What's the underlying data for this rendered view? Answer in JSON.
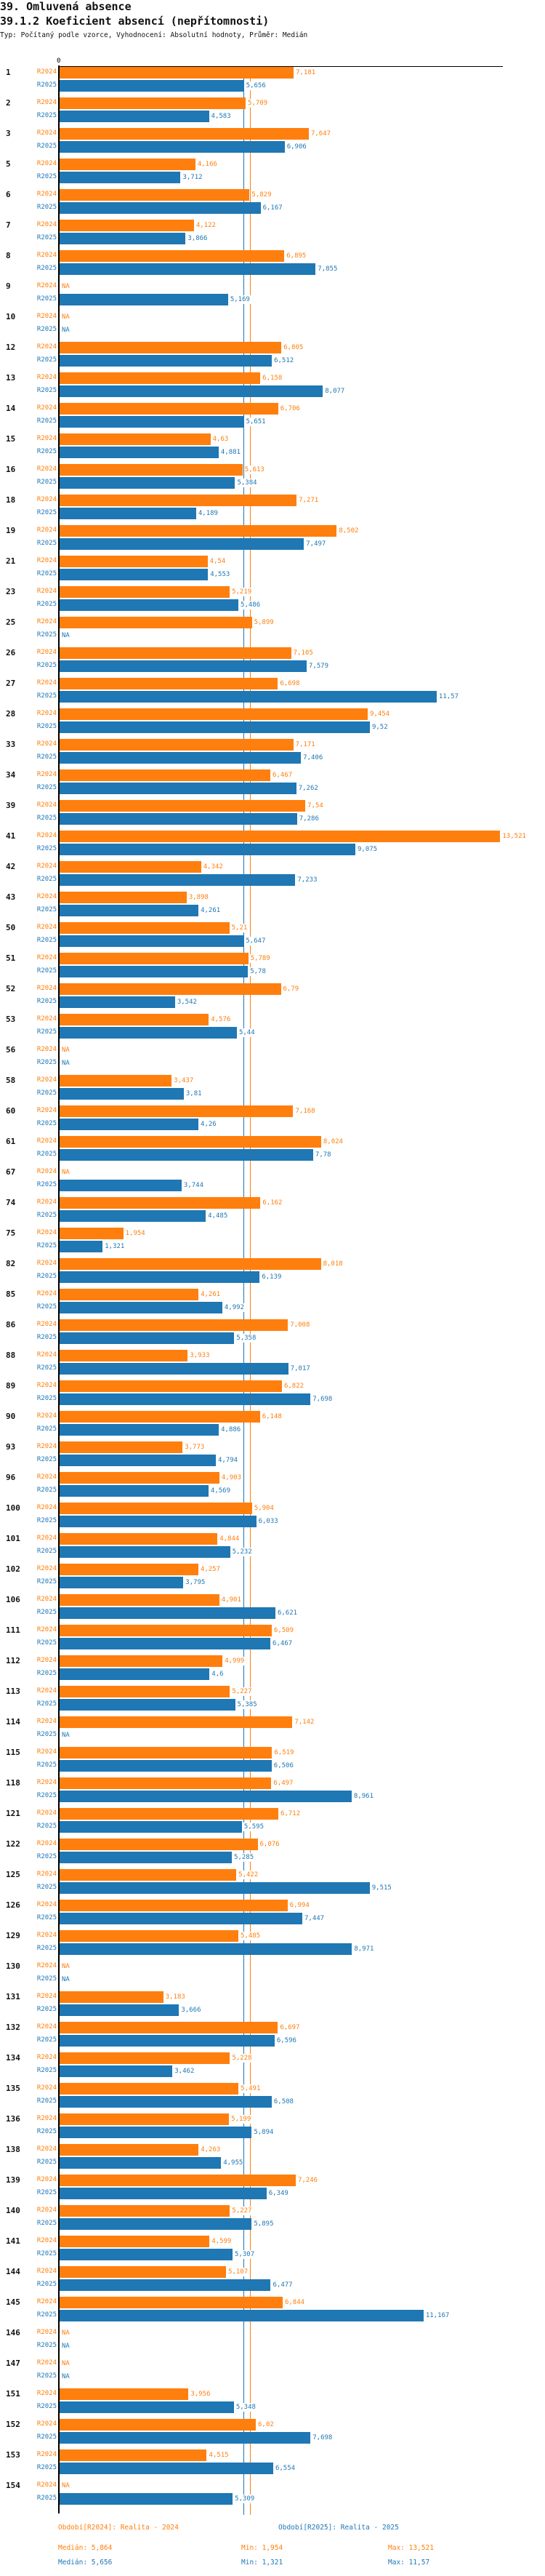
{
  "header": {
    "section": "39. Omluvená absence",
    "title": "39.1.2 Koeficient absencí (nepřítomnosti)",
    "subtitle": "Typ: Počítaný podle vzorce, Vyhodnocení: Absolutní hodnoty, Průměr: Medián"
  },
  "colors": {
    "R2024": "#ff7f0e",
    "R2025": "#1f77b4"
  },
  "chart_data": {
    "type": "bar",
    "orientation": "horizontal",
    "axis_zero_label": "0",
    "xlim": [
      0,
      13.521
    ],
    "series_names": [
      "R2024",
      "R2025"
    ],
    "medians": {
      "R2024": 5.864,
      "R2025": 5.656
    },
    "groups": [
      {
        "id": "1",
        "R2024": "7,181",
        "R2025": "5,656"
      },
      {
        "id": "2",
        "R2024": "5,709",
        "R2025": "4,583"
      },
      {
        "id": "3",
        "R2024": "7,647",
        "R2025": "6,906"
      },
      {
        "id": "5",
        "R2024": "4,166",
        "R2025": "3,712"
      },
      {
        "id": "6",
        "R2024": "5,829",
        "R2025": "6,167"
      },
      {
        "id": "7",
        "R2024": "4,122",
        "R2025": "3,866"
      },
      {
        "id": "8",
        "R2024": "6,895",
        "R2025": "7,855"
      },
      {
        "id": "9",
        "R2024": "NA",
        "R2025": "5,169"
      },
      {
        "id": "10",
        "R2024": "NA",
        "R2025": "NA"
      },
      {
        "id": "12",
        "R2024": "6,805",
        "R2025": "6,512"
      },
      {
        "id": "13",
        "R2024": "6,158",
        "R2025": "8,077"
      },
      {
        "id": "14",
        "R2024": "6,706",
        "R2025": "5,651"
      },
      {
        "id": "15",
        "R2024": "4,63",
        "R2025": "4,881"
      },
      {
        "id": "16",
        "R2024": "5,613",
        "R2025": "5,384"
      },
      {
        "id": "18",
        "R2024": "7,271",
        "R2025": "4,189"
      },
      {
        "id": "19",
        "R2024": "8,502",
        "R2025": "7,497"
      },
      {
        "id": "21",
        "R2024": "4,54",
        "R2025": "4,553"
      },
      {
        "id": "23",
        "R2024": "5,219",
        "R2025": "5,486"
      },
      {
        "id": "25",
        "R2024": "5,899",
        "R2025": "NA"
      },
      {
        "id": "26",
        "R2024": "7,105",
        "R2025": "7,579"
      },
      {
        "id": "27",
        "R2024": "6,698",
        "R2025": "11,57"
      },
      {
        "id": "28",
        "R2024": "9,454",
        "R2025": "9,52"
      },
      {
        "id": "33",
        "R2024": "7,171",
        "R2025": "7,406"
      },
      {
        "id": "34",
        "R2024": "6,467",
        "R2025": "7,262"
      },
      {
        "id": "39",
        "R2024": "7,54",
        "R2025": "7,286"
      },
      {
        "id": "41",
        "R2024": "13,521",
        "R2025": "9,075"
      },
      {
        "id": "42",
        "R2024": "4,342",
        "R2025": "7,233"
      },
      {
        "id": "43",
        "R2024": "3,898",
        "R2025": "4,261"
      },
      {
        "id": "50",
        "R2024": "5,21",
        "R2025": "5,647"
      },
      {
        "id": "51",
        "R2024": "5,789",
        "R2025": "5,78"
      },
      {
        "id": "52",
        "R2024": "6,79",
        "R2025": "3,542"
      },
      {
        "id": "53",
        "R2024": "4,576",
        "R2025": "5,44"
      },
      {
        "id": "56",
        "R2024": "NA",
        "R2025": "NA"
      },
      {
        "id": "58",
        "R2024": "3,437",
        "R2025": "3,81"
      },
      {
        "id": "60",
        "R2024": "7,168",
        "R2025": "4,26"
      },
      {
        "id": "61",
        "R2024": "8,024",
        "R2025": "7,78"
      },
      {
        "id": "67",
        "R2024": "NA",
        "R2025": "3,744"
      },
      {
        "id": "74",
        "R2024": "6,162",
        "R2025": "4,485"
      },
      {
        "id": "75",
        "R2024": "1,954",
        "R2025": "1,321"
      },
      {
        "id": "82",
        "R2024": "8,018",
        "R2025": "6,139"
      },
      {
        "id": "85",
        "R2024": "4,261",
        "R2025": "4,992"
      },
      {
        "id": "86",
        "R2024": "7,008",
        "R2025": "5,358"
      },
      {
        "id": "88",
        "R2024": "3,933",
        "R2025": "7,017"
      },
      {
        "id": "89",
        "R2024": "6,822",
        "R2025": "7,698"
      },
      {
        "id": "90",
        "R2024": "6,148",
        "R2025": "4,886"
      },
      {
        "id": "93",
        "R2024": "3,773",
        "R2025": "4,794"
      },
      {
        "id": "96",
        "R2024": "4,903",
        "R2025": "4,569"
      },
      {
        "id": "100",
        "R2024": "5,904",
        "R2025": "6,033"
      },
      {
        "id": "101",
        "R2024": "4,844",
        "R2025": "5,232"
      },
      {
        "id": "102",
        "R2024": "4,257",
        "R2025": "3,795"
      },
      {
        "id": "106",
        "R2024": "4,901",
        "R2025": "6,621"
      },
      {
        "id": "111",
        "R2024": "6,509",
        "R2025": "6,467"
      },
      {
        "id": "112",
        "R2024": "4,999",
        "R2025": "4,6"
      },
      {
        "id": "113",
        "R2024": "5,227",
        "R2025": "5,385"
      },
      {
        "id": "114",
        "R2024": "7,142",
        "R2025": "NA"
      },
      {
        "id": "115",
        "R2024": "6,519",
        "R2025": "6,506"
      },
      {
        "id": "118",
        "R2024": "6,497",
        "R2025": "8,961"
      },
      {
        "id": "121",
        "R2024": "6,712",
        "R2025": "5,595"
      },
      {
        "id": "122",
        "R2024": "6,076",
        "R2025": "5,285"
      },
      {
        "id": "125",
        "R2024": "5,422",
        "R2025": "9,515"
      },
      {
        "id": "126",
        "R2024": "6,994",
        "R2025": "7,447"
      },
      {
        "id": "129",
        "R2024": "5,485",
        "R2025": "8,971"
      },
      {
        "id": "130",
        "R2024": "NA",
        "R2025": "NA"
      },
      {
        "id": "131",
        "R2024": "3,183",
        "R2025": "3,666"
      },
      {
        "id": "132",
        "R2024": "6,697",
        "R2025": "6,596"
      },
      {
        "id": "134",
        "R2024": "5,228",
        "R2025": "3,462"
      },
      {
        "id": "135",
        "R2024": "5,491",
        "R2025": "6,508"
      },
      {
        "id": "136",
        "R2024": "5,199",
        "R2025": "5,894"
      },
      {
        "id": "138",
        "R2024": "4,263",
        "R2025": "4,955"
      },
      {
        "id": "139",
        "R2024": "7,246",
        "R2025": "6,349"
      },
      {
        "id": "140",
        "R2024": "5,227",
        "R2025": "5,895"
      },
      {
        "id": "141",
        "R2024": "4,599",
        "R2025": "5,307"
      },
      {
        "id": "144",
        "R2024": "5,107",
        "R2025": "6,477"
      },
      {
        "id": "145",
        "R2024": "6,844",
        "R2025": "11,167"
      },
      {
        "id": "146",
        "R2024": "NA",
        "R2025": "NA"
      },
      {
        "id": "147",
        "R2024": "NA",
        "R2025": "NA"
      },
      {
        "id": "151",
        "R2024": "3,956",
        "R2025": "5,348"
      },
      {
        "id": "152",
        "R2024": "6,02",
        "R2025": "7,698"
      },
      {
        "id": "153",
        "R2024": "4,515",
        "R2025": "6,554"
      },
      {
        "id": "154",
        "R2024": "NA",
        "R2025": "5,309"
      }
    ]
  },
  "legend": {
    "r2024": "Období[R2024]: Realita - 2024",
    "r2025": "Období[R2025]: Realita - 2025"
  },
  "stats": {
    "r2024": {
      "median": "Medián: 5,864",
      "min": "Min: 1,954",
      "max": "Max: 13,521"
    },
    "r2025": {
      "median": "Medián: 5,656",
      "min": "Min: 1,321",
      "max": "Max: 11,57"
    }
  }
}
